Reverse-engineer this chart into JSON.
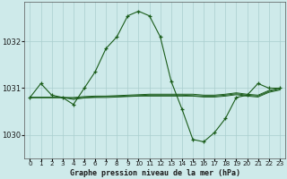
{
  "title": "Graphe pression niveau de la mer (hPa)",
  "background_color": "#ceeaea",
  "grid_color": "#aacece",
  "line_color": "#1a5c1a",
  "xlim": [
    -0.5,
    23.5
  ],
  "ylim": [
    1029.5,
    1032.85
  ],
  "yticks": [
    1030,
    1031,
    1032
  ],
  "xtick_labels": [
    "0",
    "1",
    "2",
    "3",
    "4",
    "5",
    "6",
    "7",
    "8",
    "9",
    "10",
    "11",
    "12",
    "13",
    "14",
    "15",
    "16",
    "17",
    "18",
    "19",
    "20",
    "21",
    "22",
    "23"
  ],
  "hours": [
    0,
    1,
    2,
    3,
    4,
    5,
    6,
    7,
    8,
    9,
    10,
    11,
    12,
    13,
    14,
    15,
    16,
    17,
    18,
    19,
    20,
    21,
    22,
    23
  ],
  "pressure_main": [
    1030.8,
    1031.1,
    1030.85,
    1030.8,
    1030.65,
    1031.0,
    1031.35,
    1031.85,
    1032.1,
    1032.55,
    1032.65,
    1032.55,
    1032.1,
    1031.15,
    1030.55,
    1029.9,
    1029.85,
    1030.05,
    1030.35,
    1030.8,
    1030.85,
    1031.1,
    1031.0,
    1031.0
  ],
  "pressure_flat1": [
    1030.8,
    1030.8,
    1030.8,
    1030.8,
    1030.8,
    1030.82,
    1030.83,
    1030.83,
    1030.84,
    1030.85,
    1030.86,
    1030.87,
    1030.87,
    1030.87,
    1030.87,
    1030.87,
    1030.85,
    1030.85,
    1030.87,
    1030.9,
    1030.87,
    1030.85,
    1030.95,
    1031.0
  ],
  "pressure_flat2": [
    1030.8,
    1030.8,
    1030.8,
    1030.8,
    1030.78,
    1030.8,
    1030.81,
    1030.82,
    1030.82,
    1030.83,
    1030.84,
    1030.85,
    1030.85,
    1030.85,
    1030.85,
    1030.84,
    1030.83,
    1030.83,
    1030.85,
    1030.88,
    1030.85,
    1030.83,
    1030.93,
    1030.98
  ],
  "pressure_flat3": [
    1030.8,
    1030.8,
    1030.8,
    1030.8,
    1030.76,
    1030.79,
    1030.8,
    1030.8,
    1030.81,
    1030.82,
    1030.83,
    1030.83,
    1030.83,
    1030.83,
    1030.83,
    1030.83,
    1030.81,
    1030.81,
    1030.83,
    1030.86,
    1030.83,
    1030.81,
    1030.91,
    1030.96
  ]
}
